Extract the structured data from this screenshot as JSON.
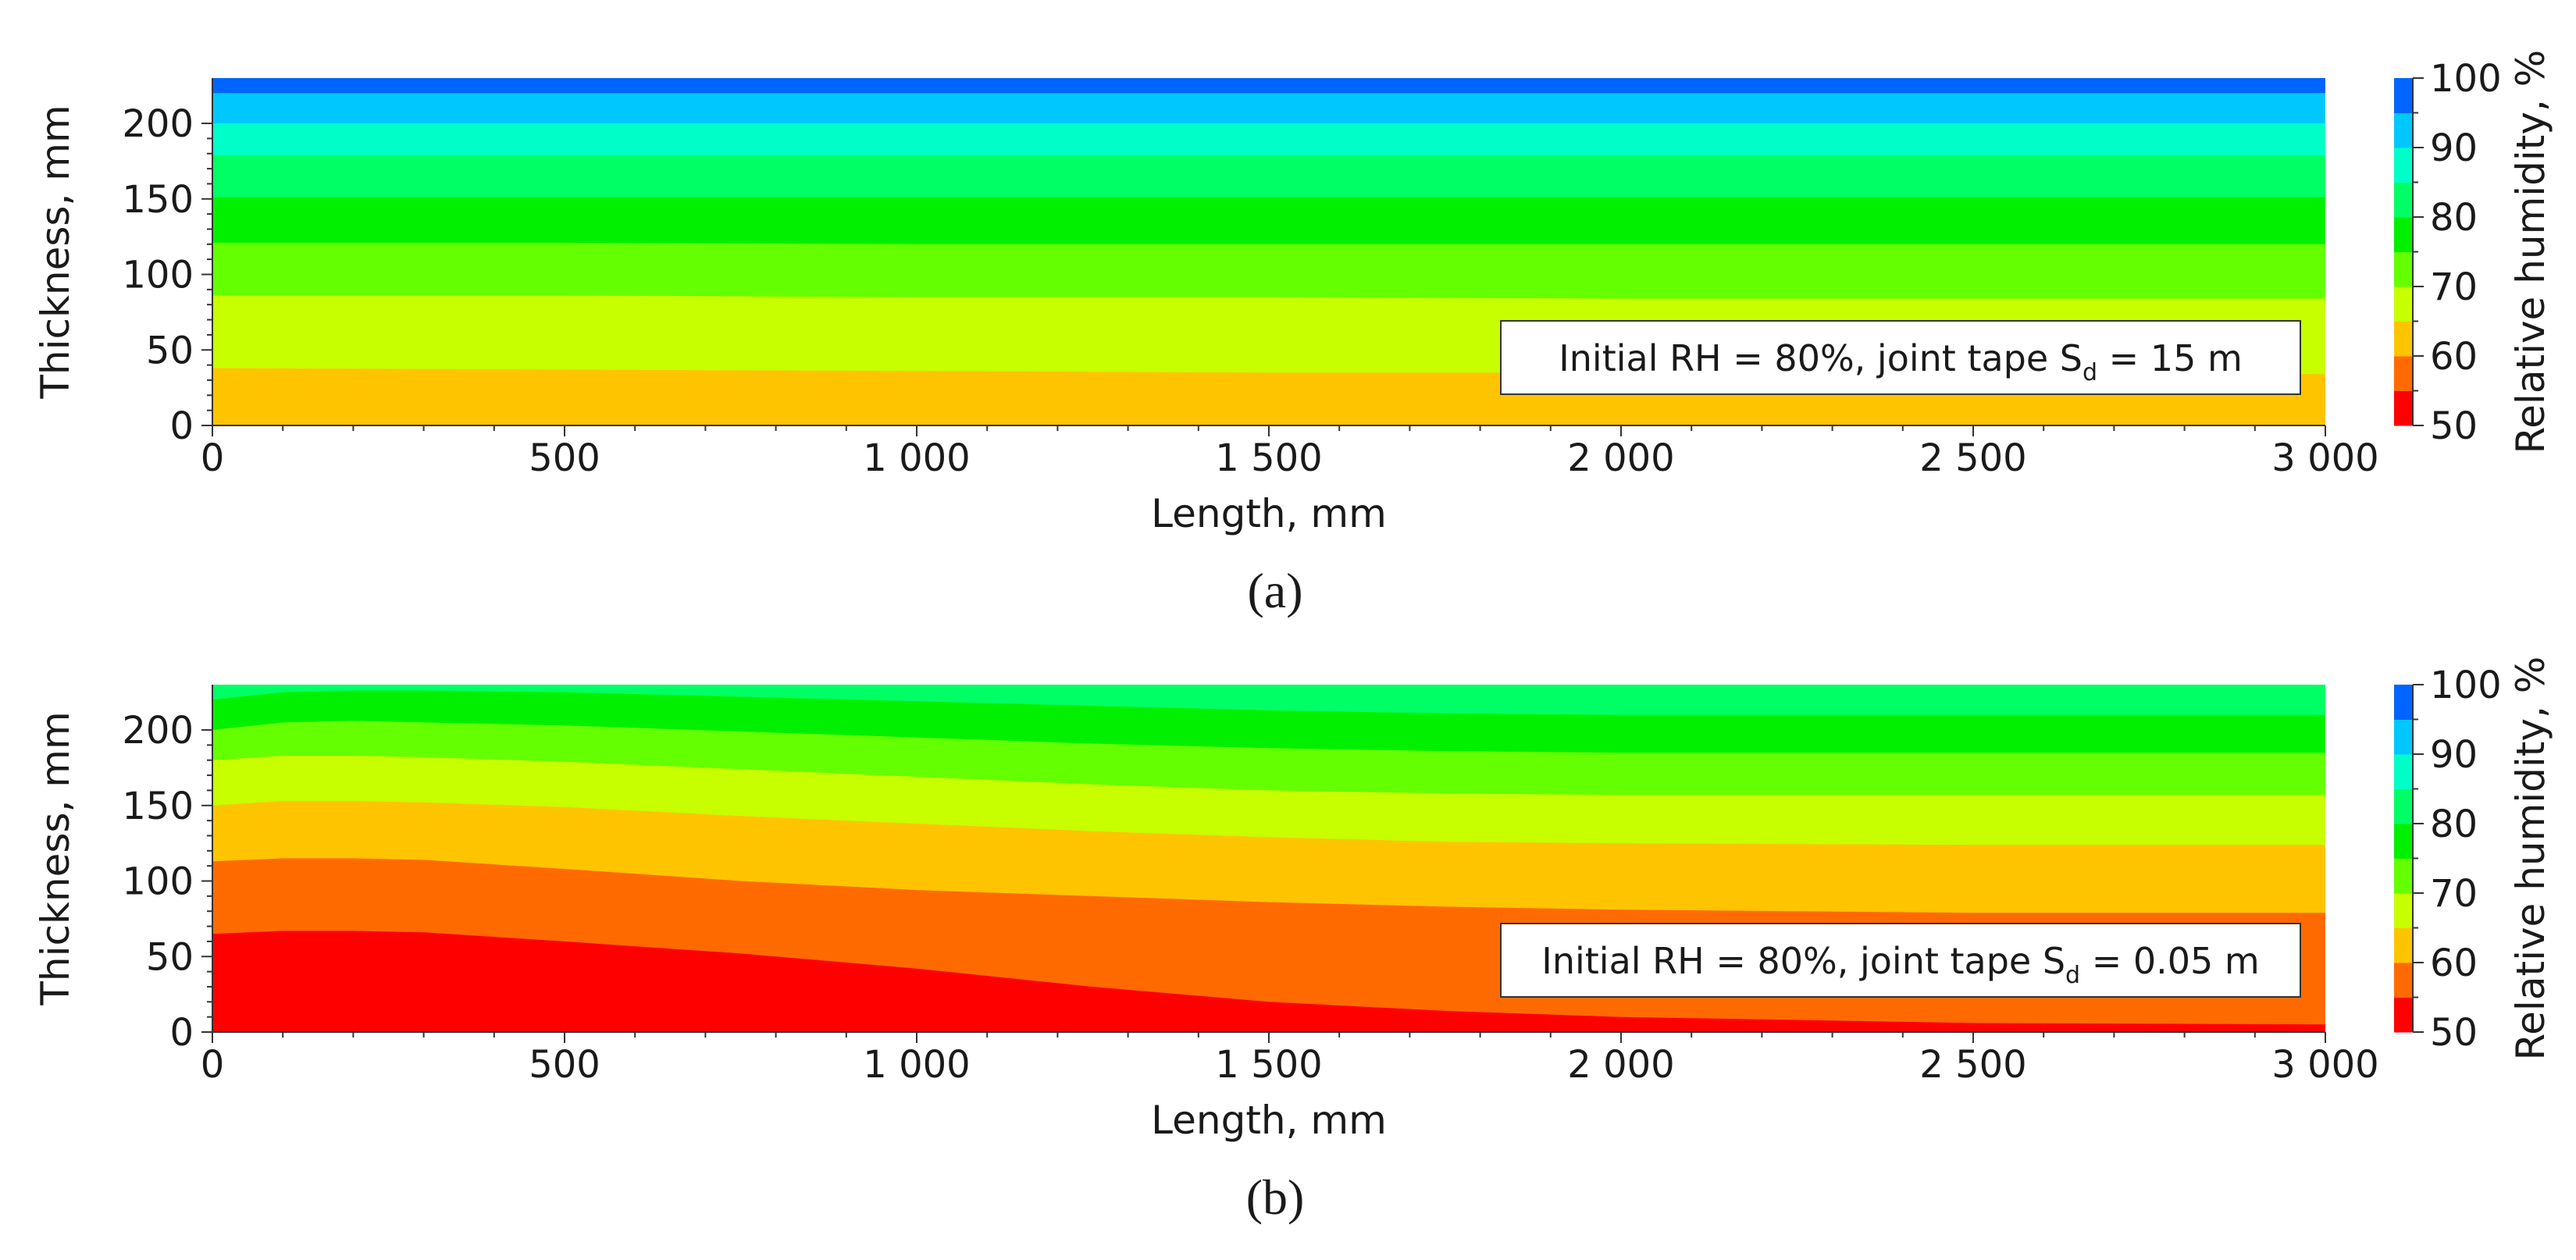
{
  "colorbar": {
    "title": "Relative humidity, %",
    "levels": [
      {
        "from": 50,
        "to": 55,
        "color": "#ff0000"
      },
      {
        "from": 55,
        "to": 60,
        "color": "#ff6a00"
      },
      {
        "from": 60,
        "to": 65,
        "color": "#ffc400"
      },
      {
        "from": 65,
        "to": 70,
        "color": "#c8ff00"
      },
      {
        "from": 70,
        "to": 75,
        "color": "#64ff00"
      },
      {
        "from": 75,
        "to": 80,
        "color": "#00f000"
      },
      {
        "from": 80,
        "to": 85,
        "color": "#00ff64"
      },
      {
        "from": 85,
        "to": 90,
        "color": "#00ffc8"
      },
      {
        "from": 90,
        "to": 95,
        "color": "#00c8ff"
      },
      {
        "from": 95,
        "to": 100,
        "color": "#0064ff"
      }
    ],
    "ticks": [
      {
        "value": 50,
        "label": "50"
      },
      {
        "value": 60,
        "label": "60"
      },
      {
        "value": 70,
        "label": "70"
      },
      {
        "value": 80,
        "label": "80"
      },
      {
        "value": 90,
        "label": "90"
      },
      {
        "value": 100,
        "label": "100"
      }
    ]
  },
  "chart_data": [
    {
      "type": "heatmap",
      "panel_label": "(a)",
      "xlabel": "Length, mm",
      "ylabel": "Thickness, mm",
      "xlim": [
        0,
        3000
      ],
      "ylim": [
        0,
        230
      ],
      "xticks": [
        {
          "value": 0,
          "label": "0"
        },
        {
          "value": 500,
          "label": "500"
        },
        {
          "value": 1000,
          "label": "1 000"
        },
        {
          "value": 1500,
          "label": "1 500"
        },
        {
          "value": 2000,
          "label": "2 000"
        },
        {
          "value": 2500,
          "label": "2 500"
        },
        {
          "value": 3000,
          "label": "3 000"
        }
      ],
      "yticks": [
        {
          "value": 0,
          "label": "0"
        },
        {
          "value": 50,
          "label": "50"
        },
        {
          "value": 100,
          "label": "100"
        },
        {
          "value": 150,
          "label": "150"
        },
        {
          "value": 200,
          "label": "200"
        }
      ],
      "annotation": {
        "prefix": "Initial RH = 80%, joint tape S",
        "sub": "d",
        "suffix": " = 15 m"
      },
      "x": [
        0,
        500,
        1000,
        1500,
        2000,
        2500,
        3000
      ],
      "contour_bands": [
        {
          "level": 60,
          "upper_y": [
            38,
            37,
            36,
            35,
            35,
            35,
            34
          ]
        },
        {
          "level": 65,
          "upper_y": [
            86,
            86,
            85,
            85,
            84,
            84,
            84
          ]
        },
        {
          "level": 70,
          "upper_y": [
            121,
            121,
            120,
            120,
            120,
            120,
            120
          ]
        },
        {
          "level": 75,
          "upper_y": [
            151,
            151,
            151,
            151,
            151,
            151,
            151
          ]
        },
        {
          "level": 80,
          "upper_y": [
            179,
            179,
            179,
            179,
            179,
            179,
            179
          ]
        },
        {
          "level": 85,
          "upper_y": [
            200,
            200,
            200,
            200,
            200,
            200,
            200
          ]
        },
        {
          "level": 90,
          "upper_y": [
            220,
            220,
            220,
            220,
            220,
            220,
            220
          ]
        },
        {
          "level": 95,
          "upper_y": [
            230,
            230,
            230,
            230,
            230,
            230,
            230
          ]
        }
      ]
    },
    {
      "type": "heatmap",
      "panel_label": "(b)",
      "xlabel": "Length, mm",
      "ylabel": "Thickness, mm",
      "xlim": [
        0,
        3000
      ],
      "ylim": [
        0,
        230
      ],
      "xticks": [
        {
          "value": 0,
          "label": "0"
        },
        {
          "value": 500,
          "label": "500"
        },
        {
          "value": 1000,
          "label": "1 000"
        },
        {
          "value": 1500,
          "label": "1 500"
        },
        {
          "value": 2000,
          "label": "2 000"
        },
        {
          "value": 2500,
          "label": "2 500"
        },
        {
          "value": 3000,
          "label": "3 000"
        }
      ],
      "yticks": [
        {
          "value": 0,
          "label": "0"
        },
        {
          "value": 50,
          "label": "50"
        },
        {
          "value": 100,
          "label": "100"
        },
        {
          "value": 150,
          "label": "150"
        },
        {
          "value": 200,
          "label": "200"
        }
      ],
      "annotation": {
        "prefix": "Initial RH = 80%, joint tape S",
        "sub": "d",
        "suffix": " = 0.05 m"
      },
      "x": [
        0,
        100,
        200,
        300,
        500,
        750,
        1000,
        1250,
        1500,
        1750,
        2000,
        2500,
        3000
      ],
      "contour_bands": [
        {
          "level": 50,
          "upper_y": [
            65,
            67,
            67,
            66,
            60,
            52,
            42,
            30,
            20,
            14,
            10,
            6,
            5
          ]
        },
        {
          "level": 55,
          "upper_y": [
            113,
            115,
            115,
            114,
            108,
            100,
            94,
            90,
            86,
            83,
            81,
            79,
            79
          ]
        },
        {
          "level": 60,
          "upper_y": [
            150,
            153,
            153,
            152,
            149,
            143,
            138,
            133,
            129,
            126,
            125,
            124,
            124
          ]
        },
        {
          "level": 65,
          "upper_y": [
            180,
            183,
            183,
            182,
            179,
            174,
            169,
            164,
            160,
            158,
            157,
            157,
            157
          ]
        },
        {
          "level": 70,
          "upper_y": [
            200,
            205,
            206,
            205,
            203,
            199,
            195,
            191,
            188,
            186,
            185,
            185,
            185
          ]
        },
        {
          "level": 75,
          "upper_y": [
            220,
            225,
            226,
            226,
            225,
            222,
            219,
            216,
            213,
            211,
            210,
            210,
            210
          ]
        },
        {
          "level": 80,
          "upper_y": [
            230,
            230,
            230,
            230,
            230,
            230,
            230,
            230,
            230,
            230,
            230,
            230,
            230
          ]
        }
      ]
    }
  ]
}
